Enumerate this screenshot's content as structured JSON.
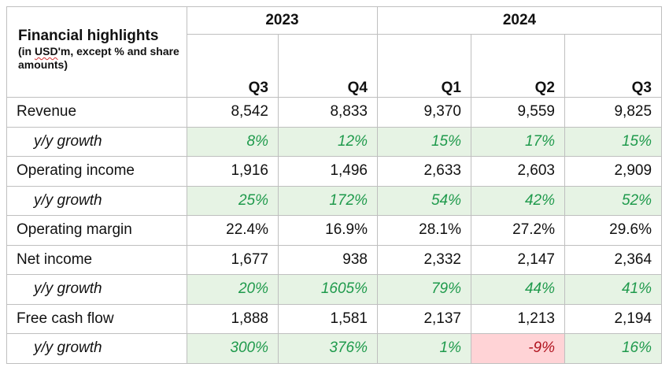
{
  "header": {
    "title": "Financial highlights",
    "subtitle_pre": "(in ",
    "subtitle_flag": "USD",
    "subtitle_post": "'m, except % and share amounts)",
    "years": [
      "2023",
      "2024"
    ],
    "quarters": [
      "Q3",
      "Q4",
      "Q1",
      "Q2",
      "Q3"
    ]
  },
  "colors": {
    "positive_bg": "#e6f3e4",
    "positive_text": "#1f9a4c",
    "negative_bg": "#ffd3d6",
    "negative_text": "#b0131e"
  },
  "rows": [
    {
      "label": "Revenue",
      "type": "metric",
      "values": [
        "8,542",
        "8,833",
        "9,370",
        "9,559",
        "9,825"
      ]
    },
    {
      "label": "y/y growth",
      "type": "growth",
      "values": [
        "8%",
        "12%",
        "15%",
        "17%",
        "15%"
      ]
    },
    {
      "label": "Operating income",
      "type": "metric",
      "values": [
        "1,916",
        "1,496",
        "2,633",
        "2,603",
        "2,909"
      ]
    },
    {
      "label": "y/y growth",
      "type": "growth",
      "values": [
        "25%",
        "172%",
        "54%",
        "42%",
        "52%"
      ]
    },
    {
      "label": "Operating margin",
      "type": "metric",
      "values": [
        "22.4%",
        "16.9%",
        "28.1%",
        "27.2%",
        "29.6%"
      ]
    },
    {
      "label": "Net income",
      "type": "metric",
      "values": [
        "1,677",
        "938",
        "2,332",
        "2,147",
        "2,364"
      ]
    },
    {
      "label": "y/y growth",
      "type": "growth",
      "values": [
        "20%",
        "1605%",
        "79%",
        "44%",
        "41%"
      ]
    },
    {
      "label": "Free cash flow",
      "type": "metric",
      "values": [
        "1,888",
        "1,581",
        "2,137",
        "1,213",
        "2,194"
      ]
    },
    {
      "label": "y/y growth",
      "type": "growth",
      "values": [
        "300%",
        "376%",
        "1%",
        "-9%",
        "16%"
      ]
    }
  ]
}
